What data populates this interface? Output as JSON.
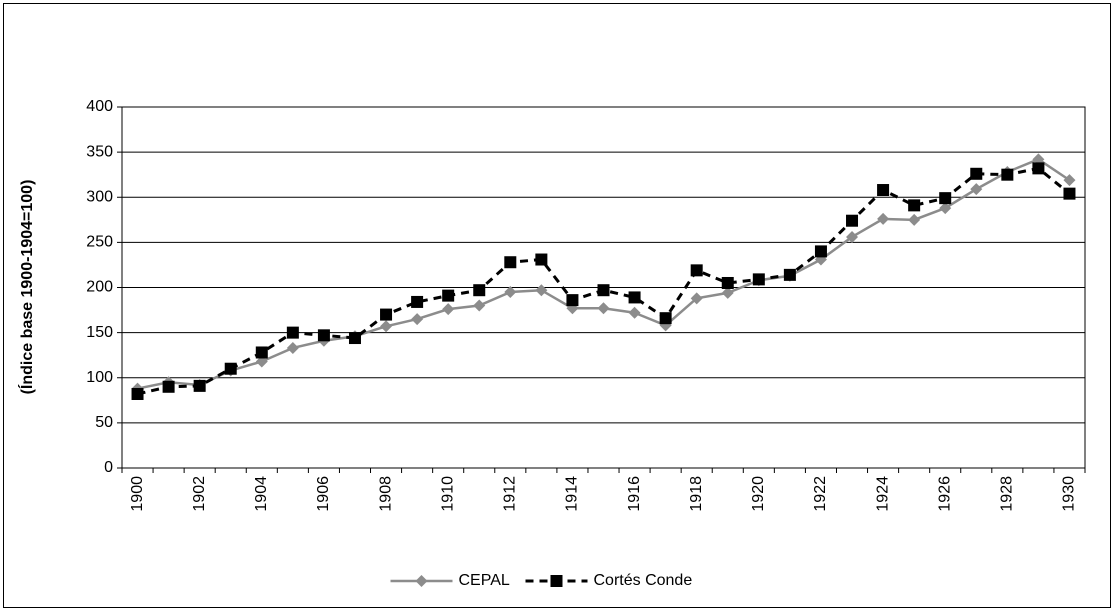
{
  "chart_data": {
    "type": "line",
    "y_label": "(Índice base 1900-1904=100)",
    "categories": [
      "1900",
      null,
      "1902",
      null,
      "1904",
      null,
      "1906",
      null,
      "1908",
      null,
      "1910",
      null,
      "1912",
      null,
      "1914",
      null,
      "1916",
      null,
      "1918",
      null,
      "1920",
      null,
      "1922",
      null,
      "1924",
      null,
      "1926",
      null,
      "1928",
      null,
      "1930"
    ],
    "series": [
      {
        "name": "CEPAL",
        "color": "#8c8c8c",
        "dash": false,
        "marker": "diamond",
        "values": [
          88,
          95,
          92,
          108,
          118,
          133,
          141,
          146,
          157,
          165,
          176,
          180,
          195,
          197,
          177,
          177,
          172,
          158,
          188,
          194,
          208,
          213,
          231,
          256,
          276,
          275,
          288,
          309,
          328,
          342,
          319
        ]
      },
      {
        "name": "Cortés Conde",
        "color": "#000000",
        "dash": true,
        "marker": "square",
        "values": [
          82,
          90,
          91,
          110,
          128,
          150,
          147,
          144,
          170,
          184,
          191,
          197,
          228,
          231,
          186,
          197,
          189,
          166,
          219,
          205,
          209,
          214,
          240,
          274,
          308,
          291,
          299,
          326,
          325,
          332,
          304
        ]
      }
    ],
    "ylim": [
      0,
      400
    ],
    "yticks": [
      0,
      50,
      100,
      150,
      200,
      250,
      300,
      350,
      400
    ],
    "grid": true,
    "legend": "bottom"
  }
}
